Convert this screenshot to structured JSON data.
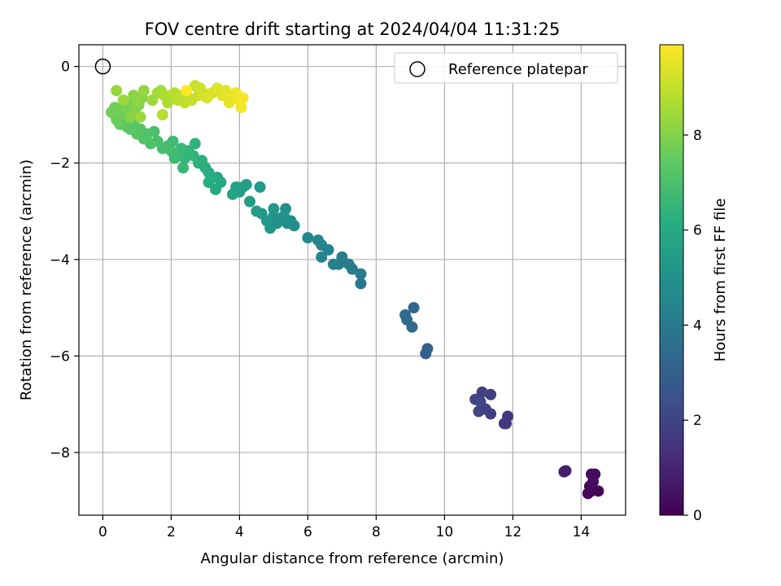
{
  "chart_data": {
    "type": "scatter",
    "title": "FOV centre drift starting at 2024/04/04 11:31:25",
    "xlabel": "Angular distance from reference (arcmin)",
    "ylabel": "Rotation from reference (arcmin)",
    "xlim": [
      -0.7,
      15.3
    ],
    "ylim": [
      -9.3,
      0.45
    ],
    "xticks": [
      0,
      2,
      4,
      6,
      8,
      10,
      12,
      14
    ],
    "xtick_labels": [
      "0",
      "2",
      "4",
      "6",
      "8",
      "10",
      "12",
      "14"
    ],
    "yticks": [
      0,
      -2,
      -4,
      -6,
      -8
    ],
    "ytick_labels": [
      "0",
      "−2",
      "−4",
      "−6",
      "−8"
    ],
    "grid": true,
    "legend": {
      "placement": "top-right",
      "entries": [
        {
          "label": "Reference platepar",
          "marker": "open-circle"
        }
      ]
    },
    "reference_point": {
      "x": 0,
      "y": 0
    },
    "colorbar": {
      "label": "Hours from first FF file",
      "colormap": "viridis",
      "range": [
        0,
        9.9
      ],
      "ticks": [
        0,
        2,
        4,
        6,
        8
      ],
      "tick_labels": [
        "0",
        "2",
        "4",
        "6",
        "8"
      ]
    },
    "series": [
      {
        "points": [
          [
            14.3,
            -8.8,
            0.05
          ],
          [
            14.5,
            -8.8,
            0.1
          ],
          [
            14.2,
            -8.85,
            0.15
          ],
          [
            14.3,
            -8.45,
            0.2
          ],
          [
            14.25,
            -8.7,
            0.25
          ],
          [
            14.4,
            -8.45,
            0.3
          ],
          [
            14.35,
            -8.6,
            0.35
          ],
          [
            13.5,
            -8.4,
            0.8
          ],
          [
            13.55,
            -8.38,
            0.85
          ],
          [
            11.8,
            -7.4,
            1.5
          ],
          [
            11.85,
            -7.25,
            1.55
          ],
          [
            11.75,
            -7.4,
            1.6
          ],
          [
            11.35,
            -6.8,
            1.8
          ],
          [
            11.35,
            -7.2,
            1.85
          ],
          [
            11.2,
            -7.1,
            1.9
          ],
          [
            11.1,
            -6.75,
            1.95
          ],
          [
            11.0,
            -7.15,
            2.0
          ],
          [
            11.05,
            -6.95,
            2.05
          ],
          [
            10.9,
            -6.9,
            2.1
          ],
          [
            9.5,
            -5.85,
            3.0
          ],
          [
            9.45,
            -5.95,
            3.05
          ],
          [
            9.1,
            -5.0,
            3.3
          ],
          [
            9.05,
            -5.4,
            3.35
          ],
          [
            8.9,
            -5.25,
            3.4
          ],
          [
            8.85,
            -5.15,
            3.45
          ],
          [
            7.55,
            -4.5,
            4.0
          ],
          [
            7.55,
            -4.3,
            4.05
          ],
          [
            7.3,
            -4.2,
            4.1
          ],
          [
            7.2,
            -4.1,
            4.15
          ],
          [
            7.0,
            -3.95,
            4.2
          ],
          [
            6.9,
            -4.1,
            4.25
          ],
          [
            6.75,
            -4.1,
            4.3
          ],
          [
            6.6,
            -3.8,
            4.35
          ],
          [
            6.4,
            -3.7,
            4.4
          ],
          [
            6.4,
            -3.95,
            4.45
          ],
          [
            6.3,
            -3.6,
            4.5
          ],
          [
            6.0,
            -3.55,
            4.55
          ],
          [
            5.6,
            -3.3,
            4.8
          ],
          [
            5.5,
            -3.2,
            4.85
          ],
          [
            5.4,
            -3.25,
            4.9
          ],
          [
            5.35,
            -2.95,
            4.95
          ],
          [
            5.3,
            -3.1,
            5.0
          ],
          [
            5.1,
            -3.25,
            5.05
          ],
          [
            5.0,
            -3.1,
            5.1
          ],
          [
            5.0,
            -2.95,
            5.15
          ],
          [
            4.9,
            -3.35,
            5.2
          ],
          [
            4.8,
            -3.2,
            5.25
          ],
          [
            4.65,
            -3.05,
            5.3
          ],
          [
            4.6,
            -2.5,
            5.35
          ],
          [
            4.5,
            -3.0,
            5.4
          ],
          [
            4.3,
            -2.8,
            5.45
          ],
          [
            4.2,
            -2.45,
            5.5
          ],
          [
            4.1,
            -2.5,
            5.55
          ],
          [
            4.0,
            -2.6,
            5.6
          ],
          [
            3.9,
            -2.5,
            5.65
          ],
          [
            3.8,
            -2.65,
            5.7
          ],
          [
            3.45,
            -2.4,
            5.9
          ],
          [
            3.35,
            -2.3,
            5.95
          ],
          [
            3.3,
            -2.55,
            6.0
          ],
          [
            3.2,
            -2.3,
            6.05
          ],
          [
            3.1,
            -2.2,
            6.1
          ],
          [
            3.1,
            -2.4,
            6.15
          ],
          [
            3.0,
            -2.1,
            6.2
          ],
          [
            2.9,
            -1.95,
            6.25
          ],
          [
            2.8,
            -2.0,
            6.3
          ],
          [
            2.7,
            -1.6,
            6.35
          ],
          [
            2.65,
            -1.85,
            6.4
          ],
          [
            2.5,
            -1.75,
            6.45
          ],
          [
            2.4,
            -1.9,
            6.5
          ],
          [
            2.35,
            -2.1,
            6.55
          ],
          [
            2.3,
            -1.7,
            6.6
          ],
          [
            2.2,
            -1.8,
            6.65
          ],
          [
            2.1,
            -1.9,
            6.7
          ],
          [
            2.05,
            -1.55,
            6.75
          ],
          [
            2.0,
            -1.75,
            6.8
          ],
          [
            1.9,
            -1.65,
            6.85
          ],
          [
            1.75,
            -1.7,
            6.9
          ],
          [
            1.6,
            -1.55,
            6.95
          ],
          [
            1.5,
            -1.35,
            7.0
          ],
          [
            1.4,
            -1.6,
            7.05
          ],
          [
            1.3,
            -1.4,
            7.1
          ],
          [
            1.2,
            -1.5,
            7.15
          ],
          [
            1.1,
            -1.3,
            7.2
          ],
          [
            1.0,
            -1.4,
            7.25
          ],
          [
            0.9,
            -1.2,
            7.3
          ],
          [
            0.8,
            -1.3,
            7.35
          ],
          [
            0.7,
            -1.25,
            7.4
          ],
          [
            0.6,
            -1.1,
            7.45
          ],
          [
            0.5,
            -1.2,
            7.5
          ],
          [
            0.45,
            -1.0,
            7.55
          ],
          [
            0.4,
            -1.1,
            7.6
          ],
          [
            0.35,
            -0.85,
            7.65
          ],
          [
            0.25,
            -0.95,
            7.7
          ],
          [
            0.55,
            -0.95,
            7.75
          ],
          [
            0.65,
            -0.8,
            7.8
          ],
          [
            0.75,
            -0.9,
            7.85
          ],
          [
            0.85,
            -0.75,
            7.9
          ],
          [
            0.95,
            -0.95,
            7.95
          ],
          [
            1.05,
            -0.8,
            8.0
          ],
          [
            1.15,
            -0.65,
            8.05
          ],
          [
            0.8,
            -1.05,
            8.1
          ],
          [
            0.9,
            -0.6,
            8.15
          ],
          [
            1.0,
            -0.7,
            8.2
          ],
          [
            1.2,
            -0.5,
            8.25
          ],
          [
            0.4,
            -0.5,
            8.3
          ],
          [
            0.6,
            -0.7,
            8.35
          ],
          [
            1.1,
            -1.05,
            8.4
          ],
          [
            1.45,
            -0.7,
            8.45
          ],
          [
            1.6,
            -0.55,
            8.5
          ],
          [
            1.7,
            -0.5,
            8.55
          ],
          [
            1.8,
            -0.6,
            8.6
          ],
          [
            1.9,
            -0.75,
            8.65
          ],
          [
            2.0,
            -0.6,
            8.7
          ],
          [
            1.75,
            -1.0,
            8.75
          ],
          [
            2.1,
            -0.55,
            8.8
          ],
          [
            2.2,
            -0.7,
            8.85
          ],
          [
            2.3,
            -0.6,
            8.9
          ],
          [
            2.4,
            -0.75,
            8.95
          ],
          [
            2.5,
            -0.65,
            9.0
          ],
          [
            2.6,
            -0.7,
            9.05
          ],
          [
            2.7,
            -0.4,
            9.1
          ],
          [
            2.8,
            -0.6,
            9.15
          ],
          [
            2.85,
            -0.45,
            9.2
          ],
          [
            2.95,
            -0.55,
            9.25
          ],
          [
            3.05,
            -0.65,
            9.3
          ],
          [
            3.2,
            -0.55,
            9.35
          ],
          [
            3.35,
            -0.45,
            9.4
          ],
          [
            3.5,
            -0.6,
            9.45
          ],
          [
            3.6,
            -0.5,
            9.5
          ],
          [
            3.7,
            -0.75,
            9.55
          ],
          [
            3.8,
            -0.65,
            9.6
          ],
          [
            3.9,
            -0.55,
            9.65
          ],
          [
            4.0,
            -0.7,
            9.7
          ],
          [
            4.05,
            -0.85,
            9.75
          ],
          [
            4.1,
            -0.65,
            9.8
          ],
          [
            2.45,
            -0.5,
            9.85
          ]
        ]
      }
    ]
  }
}
